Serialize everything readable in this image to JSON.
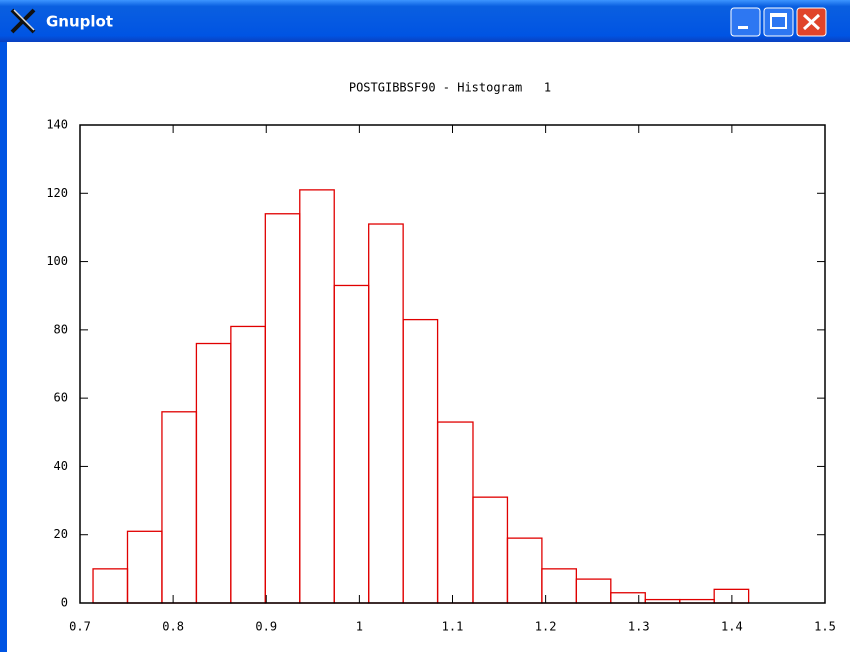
{
  "window": {
    "title": "Gnuplot"
  },
  "chart_data": {
    "type": "histogram",
    "title": "POSTGIBBSF90 - Histogram   1",
    "bins": [
      0.714,
      0.751,
      0.788,
      0.825,
      0.862,
      0.899,
      0.936,
      0.973,
      1.01,
      1.047,
      1.084,
      1.122,
      1.159,
      1.196,
      1.233,
      1.27,
      1.307,
      1.344,
      1.381,
      1.418
    ],
    "values": [
      10,
      21,
      56,
      76,
      81,
      114,
      121,
      93,
      111,
      83,
      53,
      31,
      19,
      10,
      7,
      3,
      1,
      1,
      4
    ],
    "color": "#e00000",
    "xlim": [
      0.7,
      1.5
    ],
    "xticks": [
      0.7,
      0.8,
      0.9,
      1,
      1.1,
      1.2,
      1.3,
      1.4,
      1.5
    ],
    "ylim": [
      0,
      140
    ],
    "yticks": [
      0,
      20,
      40,
      60,
      80,
      100,
      120,
      140
    ],
    "grid": false
  }
}
